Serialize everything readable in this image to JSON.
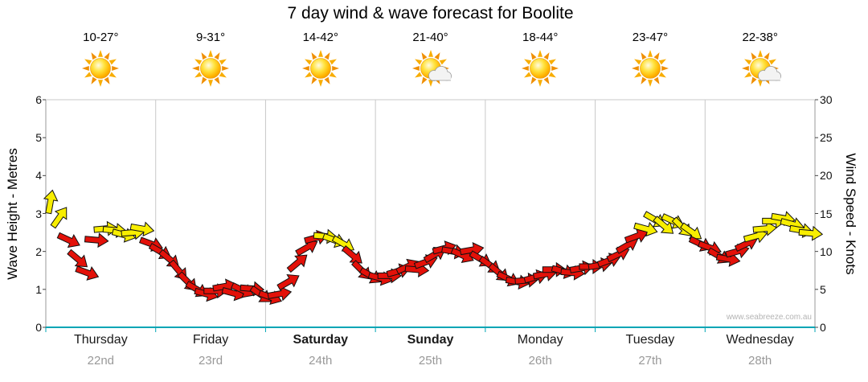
{
  "title": "7 day wind & wave forecast for Boolite",
  "watermark": "www.seabreeze.com.au",
  "axes": {
    "left_title": "Wave Height - Metres",
    "right_title": "Wind Speed - Knots"
  },
  "days": [
    {
      "name": "Thursday",
      "date": "22nd",
      "temp": "10-27°",
      "icon": "sun",
      "bold": false
    },
    {
      "name": "Friday",
      "date": "23rd",
      "temp": "9-31°",
      "icon": "sun",
      "bold": false
    },
    {
      "name": "Saturday",
      "date": "24th",
      "temp": "14-42°",
      "icon": "sun",
      "bold": true
    },
    {
      "name": "Sunday",
      "date": "25th",
      "temp": "21-40°",
      "icon": "sun-cloud",
      "bold": true
    },
    {
      "name": "Monday",
      "date": "26th",
      "temp": "18-44°",
      "icon": "sun",
      "bold": false
    },
    {
      "name": "Tuesday",
      "date": "27th",
      "temp": "23-47°",
      "icon": "sun",
      "bold": false
    },
    {
      "name": "Wednesday",
      "date": "28th",
      "temp": "22-38°",
      "icon": "sun-cloud",
      "bold": false
    }
  ],
  "chart_data": {
    "type": "wind-arrow-series",
    "title": "7 day wind & wave forecast for Boolite",
    "x_axis": {
      "days": [
        "Thursday 22nd",
        "Friday 23rd",
        "Saturday 24th",
        "Sunday 25th",
        "Monday 26th",
        "Tuesday 27th",
        "Wednesday 28th"
      ],
      "points_per_day": 12
    },
    "y_left": {
      "label": "Wave Height - Metres",
      "min": 0,
      "max": 6,
      "ticks": [
        0,
        1,
        2,
        3,
        4,
        5,
        6
      ]
    },
    "y_right": {
      "label": "Wind Speed - Knots",
      "min": 0,
      "max": 30,
      "ticks": [
        0,
        5,
        10,
        15,
        20,
        25,
        30
      ]
    },
    "colors": {
      "r": "#e31109",
      "y": "#f8ee00",
      "outline": "#111111",
      "baseline": "#00a5b5",
      "grid": "#c8c8c8"
    },
    "point_format": [
      "wind_knots",
      "arrow_direction_deg_cw_from_east",
      "color_code"
    ],
    "points_by_day": [
      [
        [
          16.5,
          -80,
          "y"
        ],
        [
          14.5,
          -55,
          "y"
        ],
        [
          11.5,
          25,
          "r"
        ],
        [
          9,
          40,
          "r"
        ],
        [
          7.2,
          20,
          "r"
        ],
        [
          11.5,
          5,
          "r"
        ],
        [
          13,
          -5,
          "y"
        ],
        [
          12.8,
          5,
          "y"
        ],
        [
          12.2,
          15,
          "y"
        ],
        [
          12.5,
          -5,
          "y"
        ],
        [
          13,
          10,
          "y"
        ],
        [
          11,
          20,
          "r"
        ]
      ],
      [
        [
          10,
          30,
          "r"
        ],
        [
          9,
          40,
          "r"
        ],
        [
          7.5,
          50,
          "r"
        ],
        [
          6,
          45,
          "r"
        ],
        [
          5,
          30,
          "r"
        ],
        [
          4.4,
          15,
          "r"
        ],
        [
          4.8,
          0,
          "r"
        ],
        [
          5.4,
          -10,
          "r"
        ],
        [
          4.5,
          15,
          "r"
        ],
        [
          4.9,
          25,
          "r"
        ],
        [
          5.1,
          5,
          "r"
        ],
        [
          4.3,
          35,
          "r"
        ]
      ],
      [
        [
          4,
          20,
          "r"
        ],
        [
          4.4,
          -10,
          "r"
        ],
        [
          6,
          -30,
          "r"
        ],
        [
          8.5,
          -40,
          "r"
        ],
        [
          10.5,
          -30,
          "r"
        ],
        [
          11.8,
          -15,
          "r"
        ],
        [
          12,
          5,
          "y"
        ],
        [
          11.5,
          20,
          "y"
        ],
        [
          11,
          30,
          "y"
        ],
        [
          9.5,
          40,
          "r"
        ],
        [
          7.5,
          45,
          "r"
        ],
        [
          6.8,
          30,
          "r"
        ]
      ],
      [
        [
          6.5,
          15,
          "r"
        ],
        [
          6.8,
          0,
          "r"
        ],
        [
          7.4,
          -15,
          "r"
        ],
        [
          8,
          -25,
          "r"
        ],
        [
          7.6,
          5,
          "r"
        ],
        [
          8.6,
          -20,
          "r"
        ],
        [
          9.6,
          -30,
          "r"
        ],
        [
          10.4,
          -15,
          "r"
        ],
        [
          10,
          10,
          "r"
        ],
        [
          9.5,
          25,
          "r"
        ],
        [
          10.2,
          -10,
          "r"
        ],
        [
          9,
          30,
          "r"
        ]
      ],
      [
        [
          8.2,
          35,
          "r"
        ],
        [
          7.2,
          40,
          "r"
        ],
        [
          6.4,
          25,
          "r"
        ],
        [
          6,
          10,
          "r"
        ],
        [
          6.2,
          -5,
          "r"
        ],
        [
          6.6,
          -15,
          "r"
        ],
        [
          7,
          -10,
          "r"
        ],
        [
          7.6,
          0,
          "r"
        ],
        [
          7.4,
          15,
          "r"
        ],
        [
          7.2,
          5,
          "r"
        ],
        [
          7.8,
          -10,
          "r"
        ],
        [
          8,
          0,
          "r"
        ]
      ],
      [
        [
          8.2,
          -10,
          "r"
        ],
        [
          8.8,
          -20,
          "r"
        ],
        [
          9.6,
          -25,
          "r"
        ],
        [
          10.8,
          -30,
          "r"
        ],
        [
          12,
          -20,
          "r"
        ],
        [
          13,
          15,
          "y"
        ],
        [
          14.2,
          30,
          "y"
        ],
        [
          13.4,
          40,
          "y"
        ],
        [
          14,
          25,
          "y"
        ],
        [
          13.2,
          45,
          "y"
        ],
        [
          12.6,
          35,
          "y"
        ],
        [
          11,
          25,
          "r"
        ]
      ],
      [
        [
          10.5,
          20,
          "r"
        ],
        [
          9.4,
          30,
          "r"
        ],
        [
          9,
          10,
          "r"
        ],
        [
          10,
          -15,
          "r"
        ],
        [
          11,
          -25,
          "r"
        ],
        [
          12,
          -15,
          "y"
        ],
        [
          13,
          -5,
          "y"
        ],
        [
          14,
          0,
          "y"
        ],
        [
          14.4,
          10,
          "y"
        ],
        [
          13.6,
          15,
          "y"
        ],
        [
          12.8,
          10,
          "y"
        ],
        [
          12.4,
          5,
          "y"
        ]
      ]
    ]
  }
}
